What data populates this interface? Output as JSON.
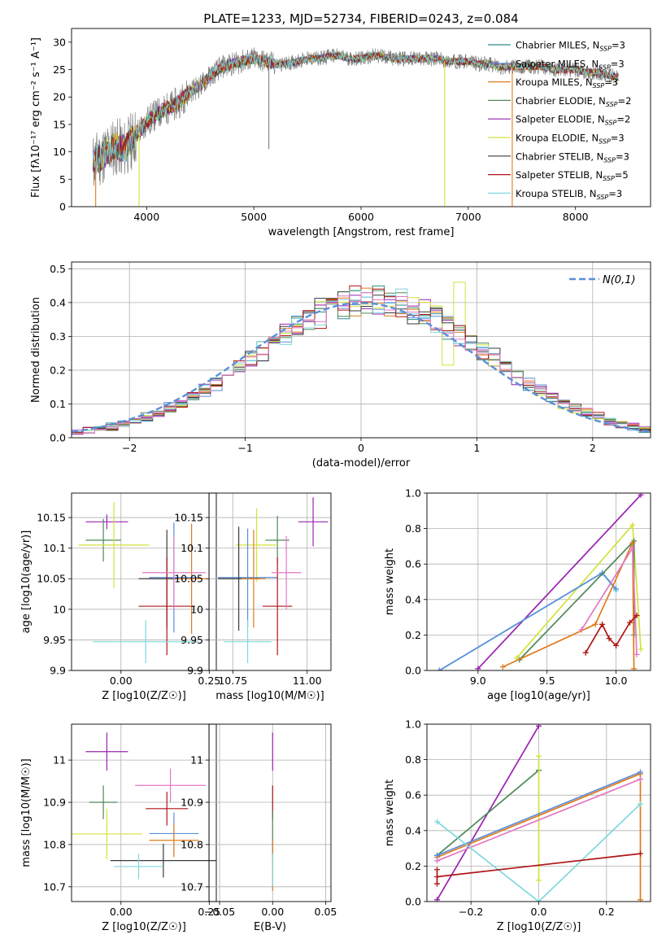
{
  "chart_data": [
    {
      "type": "line",
      "title": "PLATE=1233, MJD=52734, FIBERID=0243, z=0.084",
      "xlabel": "wavelength [Angstrom, rest frame]",
      "ylabel": "Flux [fλ10⁻¹⁷ erg cm⁻² s⁻¹ A⁻¹]",
      "xlim": [
        3300,
        8700
      ],
      "ylim": [
        0,
        32.5
      ],
      "xticks": [
        4000,
        5000,
        6000,
        7000,
        8000
      ],
      "yticks": [
        0,
        5,
        10,
        15,
        20,
        25,
        30
      ],
      "legend_position": "right",
      "series": [
        {
          "name": "Chabrier MILES, N_SSP=3",
          "color": "#2e8b8b"
        },
        {
          "name": "Salpeter MILES, N_SSP=3",
          "color": "#5a8fd8"
        },
        {
          "name": "Kroupa MILES, N_SSP=3",
          "color": "#e07b1c"
        },
        {
          "name": "Chabrier ELODIE, N_SSP=2",
          "color": "#4f8a5a"
        },
        {
          "name": "Salpeter ELODIE, N_SSP=2",
          "color": "#9a22b0"
        },
        {
          "name": "Kroupa ELODIE, N_SSP=3",
          "color": "#d4e23a"
        },
        {
          "name": "Chabrier STELIB, N_SSP=3",
          "color": "#3a3a3a"
        },
        {
          "name": "Salpeter STELIB, N_SSP=5",
          "color": "#b01414"
        },
        {
          "name": "Kroupa STELIB, N_SSP=3",
          "color": "#7fd8dc"
        }
      ],
      "data_envelope": {
        "x": [
          3500,
          3600,
          3700,
          3800,
          3900,
          4000,
          4100,
          4200,
          4300,
          4400,
          4500,
          4600,
          4700,
          4800,
          4900,
          5000,
          5100,
          5200,
          5300,
          5400,
          5500,
          5600,
          5700,
          5800,
          5900,
          6000,
          6100,
          6200,
          6300,
          6400,
          6500,
          6600,
          6700,
          6800,
          6900,
          7000,
          7100,
          7200,
          7300,
          7400,
          7500,
          7600,
          7700,
          7800,
          7900,
          8000,
          8100,
          8200,
          8300,
          8400
        ],
        "y": [
          8,
          9.5,
          11,
          10.5,
          13,
          15.5,
          17,
          18,
          19,
          21,
          22,
          24,
          25.5,
          26,
          26.5,
          27,
          26.5,
          26,
          26,
          26.5,
          27,
          27,
          27.5,
          27.5,
          27,
          27,
          27.5,
          27.5,
          27,
          27,
          27,
          27,
          27,
          26.5,
          26.5,
          26.5,
          26,
          26,
          25.5,
          25.5,
          25.5,
          25.5,
          25.5,
          25,
          25,
          25,
          24.5,
          24.5,
          24,
          23.5
        ]
      }
    },
    {
      "type": "line",
      "xlabel": "(data-model)/error",
      "ylabel": "Normed distribution",
      "xlim": [
        -2.5,
        2.5
      ],
      "ylim": [
        0,
        0.52
      ],
      "xticks": [
        -2,
        -1,
        0,
        1,
        2
      ],
      "yticks": [
        0.0,
        0.1,
        0.2,
        0.3,
        0.4,
        0.5
      ],
      "grid": true,
      "legend_position": "top-right",
      "reference": {
        "name": "N(0,1)",
        "color": "#5a8fd8",
        "style": "dashed",
        "mean": 0,
        "std": 1
      }
    },
    {
      "type": "scatter",
      "xlabel": "Z [log10(Z/Z☉)]",
      "ylabel": "age [log10(age/yr)]",
      "xlim": [
        -0.14,
        0.27
      ],
      "ylim": [
        9.9,
        10.19
      ],
      "xticks": [
        0.0,
        0.25
      ],
      "xtick_labels": [
        "0.00",
        "0.25"
      ],
      "yticks": [
        9.9,
        9.95,
        10.0,
        10.05,
        10.1,
        10.15
      ],
      "grid": true,
      "points": [
        {
          "x": -0.04,
          "y": 10.143,
          "xerr": 0.06,
          "yerr": 0.012,
          "color": "#9a22b0"
        },
        {
          "x": -0.05,
          "y": 10.113,
          "xerr": 0.05,
          "yerr": 0.035,
          "color": "#4f8a5a"
        },
        {
          "x": -0.02,
          "y": 10.105,
          "xerr": 0.1,
          "yerr": 0.07,
          "color": "#d4e23a"
        },
        {
          "x": 0.15,
          "y": 10.052,
          "xerr": 0.07,
          "yerr": 0.09,
          "color": "#5a8fd8"
        },
        {
          "x": 0.13,
          "y": 10.05,
          "xerr": 0.08,
          "yerr": 0.08,
          "color": "#3a3a3a"
        },
        {
          "x": 0.13,
          "y": 10.005,
          "xerr": 0.08,
          "yerr": 0.08,
          "color": "#b01414"
        },
        {
          "x": 0.15,
          "y": 10.06,
          "xerr": 0.09,
          "yerr": 0.06,
          "color": "#e377c2"
        },
        {
          "x": 0.2,
          "y": 10.05,
          "xerr": 0.04,
          "yerr": 0.09,
          "color": "#e07b1c"
        },
        {
          "x": 0.07,
          "y": 9.947,
          "xerr": 0.15,
          "yerr": 0.035,
          "color": "#7fd8dc"
        }
      ]
    },
    {
      "type": "scatter",
      "xlabel": "mass [log10(M/M☉)]",
      "xlim": [
        10.67,
        11.08
      ],
      "ylim": [
        9.9,
        10.19
      ],
      "xticks": [
        10.75,
        11.0
      ],
      "xtick_labels": [
        "10.75",
        "11.00"
      ],
      "yticks": [
        9.9,
        9.95,
        10.0,
        10.05,
        10.1,
        10.15
      ],
      "grid": true,
      "points": [
        {
          "x": 11.02,
          "y": 10.143,
          "xerr": 0.05,
          "yerr": 0.04,
          "color": "#9a22b0"
        },
        {
          "x": 10.9,
          "y": 10.113,
          "xerr": 0.04,
          "yerr": 0.04,
          "color": "#4f8a5a"
        },
        {
          "x": 10.83,
          "y": 10.105,
          "xerr": 0.07,
          "yerr": 0.06,
          "color": "#d4e23a"
        },
        {
          "x": 10.8,
          "y": 10.052,
          "xerr": 0.1,
          "yerr": 0.08,
          "color": "#5a8fd8"
        },
        {
          "x": 10.77,
          "y": 10.05,
          "xerr": 0.07,
          "yerr": 0.085,
          "color": "#3a3a3a"
        },
        {
          "x": 10.9,
          "y": 10.005,
          "xerr": 0.05,
          "yerr": 0.08,
          "color": "#b01414"
        },
        {
          "x": 10.93,
          "y": 10.06,
          "xerr": 0.05,
          "yerr": 0.06,
          "color": "#e377c2"
        },
        {
          "x": 10.82,
          "y": 10.05,
          "xerr": 0.04,
          "yerr": 0.08,
          "color": "#e07b1c"
        },
        {
          "x": 10.8,
          "y": 9.947,
          "xerr": 0.08,
          "yerr": 0.035,
          "color": "#7fd8dc"
        }
      ]
    },
    {
      "type": "line",
      "xlabel": "age [log10(age/yr)]",
      "ylabel": "mass weight",
      "xlim": [
        8.63,
        10.25
      ],
      "ylim": [
        0,
        1
      ],
      "xticks": [
        9.0,
        9.5,
        10.0
      ],
      "xtick_labels": [
        "9.0",
        "9.5",
        "10.0"
      ],
      "yticks": [
        0.0,
        0.2,
        0.4,
        0.6,
        0.8,
        1.0
      ],
      "grid": true,
      "series": [
        {
          "color": "#9a22b0",
          "x": [
            9.0,
            10.18
          ],
          "y": [
            0.01,
            0.99
          ]
        },
        {
          "color": "#d4e23a",
          "x": [
            9.28,
            10.12,
            10.18
          ],
          "y": [
            0.07,
            0.82,
            0.12
          ]
        },
        {
          "color": "#7fd8dc",
          "x": [
            8.72,
            9.9,
            10.0
          ],
          "y": [
            0.0,
            0.55,
            0.45
          ]
        },
        {
          "color": "#5a8fd8",
          "x": [
            8.72,
            9.9,
            10.0
          ],
          "y": [
            0.0,
            0.55,
            0.46
          ]
        },
        {
          "color": "#4f8a5a",
          "x": [
            9.3,
            10.13,
            10.13
          ],
          "y": [
            0.06,
            0.73,
            0.2
          ]
        },
        {
          "color": "#e07b1c",
          "x": [
            9.18,
            9.85,
            10.12,
            10.13
          ],
          "y": [
            0.02,
            0.26,
            0.72,
            0.01
          ]
        },
        {
          "color": "#e377c2",
          "x": [
            9.75,
            10.12,
            10.15
          ],
          "y": [
            0.23,
            0.69,
            0.09
          ]
        },
        {
          "color": "#b01414",
          "x": [
            9.78,
            9.9,
            9.95,
            10.0,
            10.1,
            10.15
          ],
          "y": [
            0.1,
            0.26,
            0.18,
            0.14,
            0.27,
            0.31
          ]
        }
      ]
    },
    {
      "type": "scatter",
      "xlabel": "Z [log10(Z/Z☉)]",
      "ylabel": "mass [log10(M/M☉)]",
      "xlim": [
        -0.14,
        0.27
      ],
      "ylim": [
        10.665,
        11.085
      ],
      "xticks": [
        0.0,
        0.25
      ],
      "xtick_labels": [
        "0.00",
        "0.25"
      ],
      "yticks": [
        10.7,
        10.8,
        10.9,
        11.0
      ],
      "grid": true,
      "points": [
        {
          "x": -0.04,
          "y": 11.02,
          "xerr": 0.06,
          "yerr": 0.045,
          "color": "#9a22b0"
        },
        {
          "x": -0.05,
          "y": 10.9,
          "xerr": 0.04,
          "yerr": 0.04,
          "color": "#4f8a5a"
        },
        {
          "x": -0.04,
          "y": 10.825,
          "xerr": 0.1,
          "yerr": 0.06,
          "color": "#d4e23a"
        },
        {
          "x": 0.14,
          "y": 10.94,
          "xerr": 0.1,
          "yerr": 0.04,
          "color": "#e377c2"
        },
        {
          "x": 0.13,
          "y": 10.885,
          "xerr": 0.06,
          "yerr": 0.04,
          "color": "#b01414"
        },
        {
          "x": 0.15,
          "y": 10.826,
          "xerr": 0.07,
          "yerr": 0.05,
          "color": "#5a8fd8"
        },
        {
          "x": 0.15,
          "y": 10.81,
          "xerr": 0.07,
          "yerr": 0.04,
          "color": "#e07b1c"
        },
        {
          "x": 0.12,
          "y": 10.762,
          "xerr": 0.15,
          "yerr": 0.04,
          "color": "#3a3a3a"
        },
        {
          "x": 0.05,
          "y": 10.748,
          "xerr": 0.07,
          "yerr": 0.03,
          "color": "#7fd8dc"
        }
      ]
    },
    {
      "type": "scatter",
      "xlabel": "E(B-V)",
      "xlim": [
        -0.06,
        0.055
      ],
      "ylim": [
        10.665,
        11.085
      ],
      "xticks": [
        -0.05,
        0.0,
        0.05
      ],
      "xtick_labels": [
        "−0.05",
        "0.00",
        "0.05"
      ],
      "yticks": [
        10.7,
        10.8,
        10.9,
        11.0
      ],
      "grid": true,
      "points": [
        {
          "x": 0,
          "y": 11.02,
          "yerr": 0.045,
          "color": "#9a22b0"
        },
        {
          "x": 0,
          "y": 10.9,
          "yerr": 0.04,
          "color": "#b01414"
        },
        {
          "x": 0,
          "y": 10.82,
          "yerr": 0.06,
          "color": "#4f8a5a"
        },
        {
          "x": 0,
          "y": 10.75,
          "yerr": 0.06,
          "color": "#e07b1c"
        },
        {
          "x": 0,
          "y": 10.74,
          "yerr": 0.04,
          "color": "#7fd8dc"
        }
      ]
    },
    {
      "type": "line",
      "xlabel": "Z [log10(Z/Z☉)]",
      "ylabel": "mass weight",
      "xlim": [
        -0.33,
        0.33
      ],
      "ylim": [
        0,
        1
      ],
      "xticks": [
        -0.2,
        0.0,
        0.2
      ],
      "xtick_labels": [
        "−0.2",
        "0.0",
        "0.2"
      ],
      "yticks": [
        0.0,
        0.2,
        0.4,
        0.6,
        0.8,
        1.0
      ],
      "grid": true,
      "series": [
        {
          "color": "#9a22b0",
          "x": [
            -0.3,
            0.0
          ],
          "y": [
            0.01,
            0.99
          ]
        },
        {
          "color": "#4f8a5a",
          "x": [
            -0.3,
            0.0
          ],
          "y": [
            0.26,
            0.74
          ]
        },
        {
          "color": "#d4e23a",
          "x": [
            0.0,
            0.0
          ],
          "y": [
            0.82,
            0.12
          ]
        },
        {
          "color": "#e07b1c",
          "x": [
            -0.3,
            0.3,
            0.3
          ],
          "y": [
            0.25,
            0.72,
            0.01
          ]
        },
        {
          "color": "#5a8fd8",
          "x": [
            -0.3,
            0.3
          ],
          "y": [
            0.26,
            0.73
          ]
        },
        {
          "color": "#e377c2",
          "x": [
            -0.3,
            0.3
          ],
          "y": [
            0.23,
            0.69
          ]
        },
        {
          "color": "#7fd8dc",
          "x": [
            -0.3,
            0.0,
            0.3
          ],
          "y": [
            0.45,
            0.0,
            0.55
          ]
        },
        {
          "color": "#b01414",
          "x": [
            -0.3,
            0.3
          ],
          "y": [
            0.14,
            0.27
          ]
        },
        {
          "color": "#b01414",
          "x": [
            -0.3,
            -0.3
          ],
          "y": [
            0.1,
            0.18
          ]
        }
      ]
    }
  ]
}
